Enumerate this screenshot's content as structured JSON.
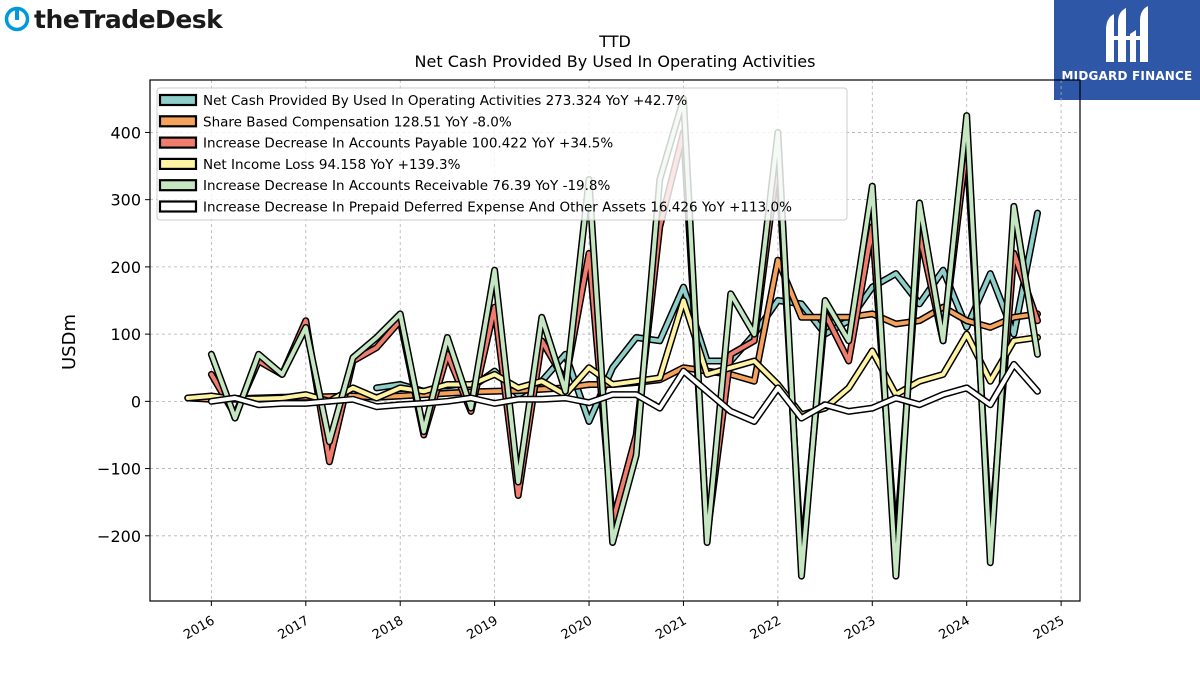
{
  "branding": {
    "left_logo_text": "theTradeDesk",
    "right_logo_text": "MIDGARD FINANCE"
  },
  "chart_data": {
    "type": "line",
    "title": "TTD",
    "subtitle": "Net Cash Provided By Used In Operating Activities",
    "xlabel": "",
    "ylabel": "USDm",
    "xlim": [
      2015.35,
      2025.2
    ],
    "ylim": [
      -297,
      478
    ],
    "x_ticks": [
      "2016",
      "2017",
      "2018",
      "2019",
      "2020",
      "2021",
      "2022",
      "2023",
      "2024",
      "2025"
    ],
    "y_ticks": [
      -200,
      -100,
      0,
      100,
      200,
      300,
      400
    ],
    "y_tick_labels": [
      "−200",
      "−100",
      "0",
      "100",
      "200",
      "300",
      "400"
    ],
    "grid": true,
    "legend_position": "top-left",
    "series": [
      {
        "name": "Net Cash Provided By Used In Operating Activities",
        "legend": "Net Cash Provided By Used In Operating Activities  273.324 YoY +42.7%",
        "color": "#8ecfc9",
        "x": [
          2017.75,
          2018.0,
          2018.25,
          2018.5,
          2018.75,
          2019.0,
          2019.25,
          2019.5,
          2019.75,
          2020.0,
          2020.25,
          2020.5,
          2020.75,
          2021.0,
          2021.25,
          2021.5,
          2021.75,
          2022.0,
          2022.25,
          2022.5,
          2022.75,
          2023.0,
          2023.25,
          2023.5,
          2023.75,
          2024.0,
          2024.25,
          2024.5,
          2024.75
        ],
        "y": [
          20,
          25,
          15,
          15,
          20,
          45,
          10,
          30,
          70,
          -30,
          50,
          95,
          90,
          170,
          60,
          60,
          100,
          150,
          145,
          100,
          120,
          170,
          190,
          145,
          195,
          110,
          190,
          100,
          280
        ]
      },
      {
        "name": "Share Based Compensation",
        "legend": "Share Based Compensation  128.51 YoY -8.0%",
        "color": "#f5a25d",
        "x": [
          2015.75,
          2016.0,
          2016.25,
          2016.5,
          2016.75,
          2017.0,
          2017.25,
          2017.5,
          2017.75,
          2018.0,
          2018.25,
          2018.5,
          2018.75,
          2019.0,
          2019.25,
          2019.5,
          2019.75,
          2020.0,
          2020.25,
          2020.5,
          2020.75,
          2021.0,
          2021.25,
          2021.5,
          2021.75,
          2022.0,
          2022.25,
          2022.5,
          2022.75,
          2023.0,
          2023.25,
          2023.5,
          2023.75,
          2024.0,
          2024.25,
          2024.5,
          2024.75
        ],
        "y": [
          5,
          3,
          4,
          5,
          6,
          6,
          7,
          8,
          6,
          8,
          10,
          12,
          14,
          15,
          16,
          18,
          20,
          25,
          25,
          28,
          32,
          50,
          45,
          40,
          30,
          210,
          125,
          125,
          125,
          130,
          115,
          120,
          140,
          120,
          110,
          125,
          130
        ]
      },
      {
        "name": "Increase Decrease In Accounts Payable",
        "legend": "Increase Decrease In Accounts Payable  100.422 YoY +34.5%",
        "color": "#f07d6e",
        "x": [
          2016.0,
          2016.25,
          2016.5,
          2016.75,
          2017.0,
          2017.25,
          2017.5,
          2017.75,
          2018.0,
          2018.25,
          2018.5,
          2018.75,
          2019.0,
          2019.25,
          2019.5,
          2019.75,
          2020.0,
          2020.25,
          2020.5,
          2020.75,
          2021.0,
          2021.25,
          2021.5,
          2021.75,
          2022.0,
          2022.25,
          2022.5,
          2022.75,
          2023.0,
          2023.25,
          2023.5,
          2023.75,
          2024.0,
          2024.25,
          2024.5,
          2024.75
        ],
        "y": [
          40,
          -20,
          60,
          40,
          120,
          -90,
          60,
          80,
          120,
          -50,
          70,
          -15,
          140,
          -140,
          90,
          30,
          220,
          -180,
          -50,
          260,
          400,
          -200,
          70,
          90,
          360,
          -240,
          130,
          60,
          260,
          -220,
          250,
          90,
          380,
          -210,
          220,
          120
        ]
      },
      {
        "name": "Net Income Loss",
        "legend": "Net Income Loss  94.158 YoY +139.3%",
        "color": "#fdf3a3",
        "x": [
          2015.75,
          2016.0,
          2016.25,
          2016.5,
          2016.75,
          2017.0,
          2017.25,
          2017.5,
          2017.75,
          2018.0,
          2018.25,
          2018.5,
          2018.75,
          2019.0,
          2019.25,
          2019.5,
          2019.75,
          2020.0,
          2020.25,
          2020.5,
          2020.75,
          2021.0,
          2021.25,
          2021.5,
          2021.75,
          2022.0,
          2022.25,
          2022.5,
          2022.75,
          2023.0,
          2023.25,
          2023.5,
          2023.75,
          2024.0,
          2024.25,
          2024.5,
          2024.75
        ],
        "y": [
          5,
          8,
          3,
          4,
          5,
          10,
          0,
          20,
          5,
          20,
          15,
          25,
          25,
          40,
          20,
          30,
          10,
          50,
          25,
          30,
          35,
          150,
          40,
          50,
          60,
          25,
          -20,
          -10,
          20,
          75,
          10,
          30,
          40,
          100,
          30,
          90,
          95
        ]
      },
      {
        "name": "Increase Decrease In Accounts Receivable",
        "legend": "Increase Decrease In Accounts Receivable  76.39 YoY -19.8%",
        "color": "#c4e6c0",
        "x": [
          2016.0,
          2016.25,
          2016.5,
          2016.75,
          2017.0,
          2017.25,
          2017.5,
          2017.75,
          2018.0,
          2018.25,
          2018.5,
          2018.75,
          2019.0,
          2019.25,
          2019.5,
          2019.75,
          2020.0,
          2020.25,
          2020.5,
          2020.75,
          2021.0,
          2021.25,
          2021.5,
          2021.75,
          2022.0,
          2022.25,
          2022.5,
          2022.75,
          2023.0,
          2023.25,
          2023.5,
          2023.75,
          2024.0,
          2024.25,
          2024.5,
          2024.75
        ],
        "y": [
          70,
          -25,
          70,
          40,
          110,
          -60,
          65,
          95,
          130,
          -45,
          95,
          -10,
          195,
          -120,
          125,
          15,
          330,
          -210,
          -80,
          330,
          450,
          -210,
          160,
          100,
          400,
          -260,
          150,
          90,
          320,
          -260,
          295,
          90,
          425,
          -240,
          290,
          70
        ]
      },
      {
        "name": "Increase Decrease In Prepaid Deferred Expense And Other Assets",
        "legend": "Increase Decrease In Prepaid Deferred Expense And Other Assets  16.426 YoY +113.0%",
        "color": "#ffffff",
        "x": [
          2016.0,
          2016.25,
          2016.5,
          2016.75,
          2017.0,
          2017.25,
          2017.5,
          2017.75,
          2018.0,
          2018.25,
          2018.5,
          2018.75,
          2019.0,
          2019.25,
          2019.5,
          2019.75,
          2020.0,
          2020.25,
          2020.5,
          2020.75,
          2021.0,
          2021.25,
          2021.5,
          2021.75,
          2022.0,
          2022.25,
          2022.5,
          2022.75,
          2023.0,
          2023.25,
          2023.5,
          2023.75,
          2024.0,
          2024.25,
          2024.5,
          2024.75
        ],
        "y": [
          0,
          5,
          -5,
          -3,
          -3,
          0,
          3,
          -8,
          -5,
          -3,
          0,
          5,
          -3,
          3,
          3,
          5,
          -2,
          10,
          10,
          -10,
          45,
          15,
          -15,
          -30,
          20,
          -25,
          -5,
          -15,
          -10,
          5,
          -5,
          10,
          20,
          -5,
          55,
          15
        ]
      }
    ]
  }
}
